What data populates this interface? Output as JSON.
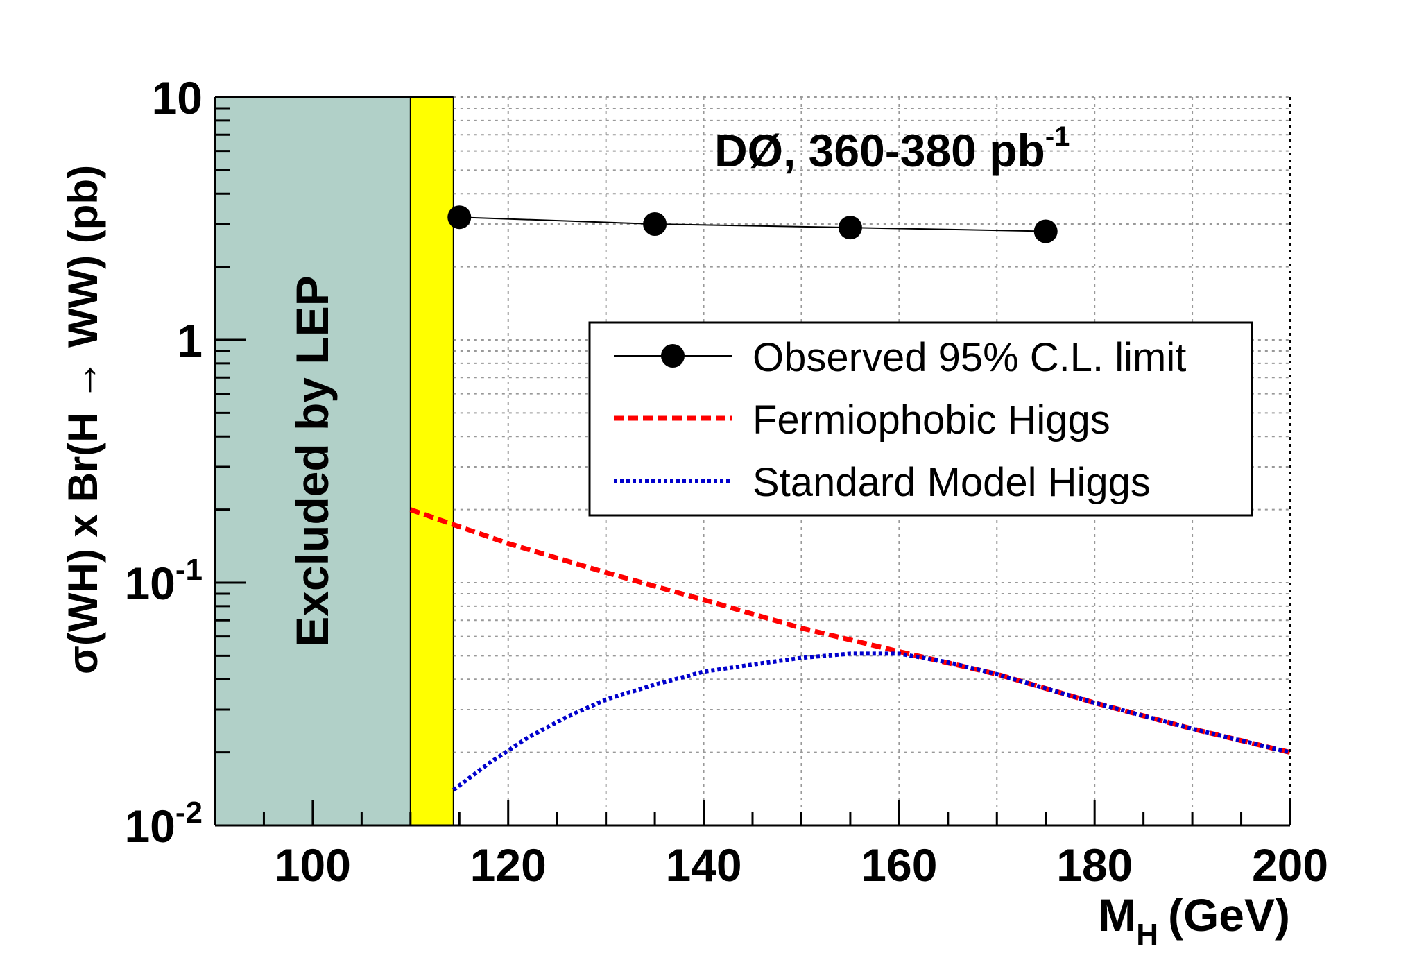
{
  "chart_data": {
    "type": "line",
    "xlabel": "M",
    "xlabel_sub": "H",
    "xlabel_unit": "(GeV)",
    "ylabel": "σ(WH) x Br(H → WW) (pb)",
    "xlim": [
      90,
      200
    ],
    "ylim": [
      0.01,
      10
    ],
    "yscale": "log",
    "grid": true,
    "x_ticks": [
      "100",
      "120",
      "140",
      "160",
      "180",
      "200"
    ],
    "y_ticks": [
      {
        "base": "10",
        "exp": "-2",
        "value": 0.01
      },
      {
        "base": "10",
        "exp": "-1",
        "value": 0.1
      },
      {
        "base": "1",
        "exp": "",
        "value": 1
      },
      {
        "base": "10",
        "exp": "",
        "value": 10
      }
    ],
    "annotation": {
      "text": "DØ, 360-380 pb",
      "sup": "-1"
    },
    "excluded_region": {
      "label": "Excluded by LEP",
      "x": [
        90,
        114.4
      ],
      "color": "#b1d0c8"
    },
    "yellow_band": {
      "x": [
        110,
        114.4
      ],
      "color": "#ffff00"
    },
    "legend_position": "upper-right",
    "series": [
      {
        "name": "Observed 95% C.L. limit",
        "style": "line-markers",
        "color": "#000000",
        "x": [
          115,
          135,
          155,
          175
        ],
        "y": [
          3.2,
          3.0,
          2.9,
          2.8
        ]
      },
      {
        "name": "Fermiophobic Higgs",
        "style": "dashed",
        "color": "#ff0000",
        "x": [
          110,
          115,
          120,
          130,
          140,
          150,
          160,
          170,
          180,
          190,
          200
        ],
        "y": [
          0.2,
          0.17,
          0.145,
          0.11,
          0.085,
          0.065,
          0.052,
          0.042,
          0.032,
          0.025,
          0.02
        ]
      },
      {
        "name": "Standard Model Higgs",
        "style": "dotted",
        "color": "#0000cc",
        "x": [
          114.4,
          118,
          122,
          126,
          130,
          135,
          140,
          145,
          150,
          155,
          160,
          165,
          170,
          180,
          190,
          200
        ],
        "y": [
          0.014,
          0.018,
          0.023,
          0.028,
          0.033,
          0.038,
          0.043,
          0.046,
          0.049,
          0.051,
          0.051,
          0.047,
          0.042,
          0.032,
          0.025,
          0.02
        ]
      }
    ]
  }
}
